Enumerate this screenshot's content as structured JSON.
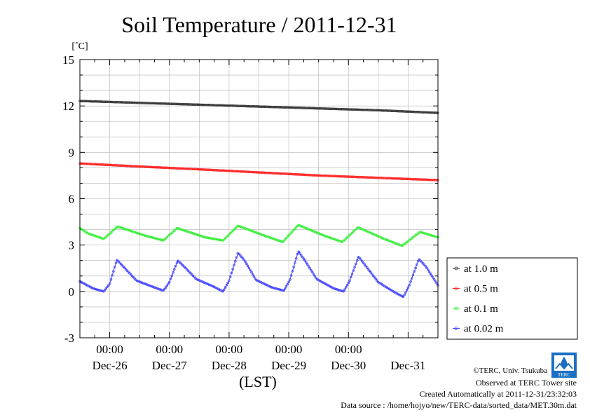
{
  "chart_data": {
    "type": "line",
    "title": "Soil Temperature / 2011-12-31",
    "yunit": "[˚C]",
    "xlabel": "(LST)",
    "ylim": [
      -3,
      15
    ],
    "yticks": [
      "15",
      "12",
      "9",
      "6",
      "3",
      "0",
      "-3"
    ],
    "x_tick_time": "00:00",
    "x_tick_dates": [
      "Dec-26",
      "Dec-27",
      "Dec-28",
      "Dec-29",
      "Dec-30",
      "Dec-31"
    ],
    "x_range_days": [
      0,
      6
    ],
    "grid": true,
    "legend_position": "right",
    "series": [
      {
        "name": "at 1.0 m",
        "color": "#333333",
        "points": [
          [
            0,
            12.32
          ],
          [
            1,
            12.2
          ],
          [
            2,
            12.08
          ],
          [
            3,
            11.96
          ],
          [
            4,
            11.84
          ],
          [
            5,
            11.72
          ],
          [
            6,
            11.55
          ]
        ]
      },
      {
        "name": "at 0.5 m",
        "color": "#ff2020",
        "points": [
          [
            0,
            8.28
          ],
          [
            1,
            8.08
          ],
          [
            2,
            7.9
          ],
          [
            3,
            7.7
          ],
          [
            4,
            7.5
          ],
          [
            5,
            7.35
          ],
          [
            6,
            7.2
          ]
        ]
      },
      {
        "name": "at 0.1 m",
        "color": "#33ee33",
        "points": [
          [
            0,
            4.1
          ],
          [
            0.14,
            3.75
          ],
          [
            0.4,
            3.4
          ],
          [
            0.63,
            4.2
          ],
          [
            1.1,
            3.6
          ],
          [
            1.4,
            3.3
          ],
          [
            1.63,
            4.1
          ],
          [
            2.1,
            3.5
          ],
          [
            2.4,
            3.3
          ],
          [
            2.65,
            4.25
          ],
          [
            3.1,
            3.6
          ],
          [
            3.4,
            3.2
          ],
          [
            3.66,
            4.3
          ],
          [
            4.1,
            3.6
          ],
          [
            4.4,
            3.2
          ],
          [
            4.66,
            4.15
          ],
          [
            5.1,
            3.4
          ],
          [
            5.4,
            2.95
          ],
          [
            5.7,
            3.85
          ],
          [
            6,
            3.5
          ]
        ]
      },
      {
        "name": "at 0.02 m",
        "color": "#4040ff",
        "points": [
          [
            0,
            0.65
          ],
          [
            0.22,
            0.2
          ],
          [
            0.4,
            0.0
          ],
          [
            0.5,
            0.5
          ],
          [
            0.62,
            2.05
          ],
          [
            0.73,
            1.6
          ],
          [
            0.95,
            0.7
          ],
          [
            1.22,
            0.3
          ],
          [
            1.4,
            0.05
          ],
          [
            1.5,
            0.6
          ],
          [
            1.64,
            2.0
          ],
          [
            1.75,
            1.6
          ],
          [
            1.95,
            0.8
          ],
          [
            2.22,
            0.35
          ],
          [
            2.4,
            0.0
          ],
          [
            2.5,
            0.7
          ],
          [
            2.65,
            2.5
          ],
          [
            2.76,
            2.0
          ],
          [
            2.95,
            0.75
          ],
          [
            3.22,
            0.25
          ],
          [
            3.42,
            0.05
          ],
          [
            3.52,
            0.75
          ],
          [
            3.66,
            2.6
          ],
          [
            3.77,
            2.0
          ],
          [
            3.97,
            0.8
          ],
          [
            4.25,
            0.2
          ],
          [
            4.42,
            0.0
          ],
          [
            4.52,
            0.7
          ],
          [
            4.67,
            2.25
          ],
          [
            4.8,
            1.6
          ],
          [
            5.0,
            0.6
          ],
          [
            5.25,
            0.0
          ],
          [
            5.42,
            -0.35
          ],
          [
            5.52,
            0.4
          ],
          [
            5.68,
            2.1
          ],
          [
            5.8,
            1.6
          ],
          [
            6,
            0.4
          ]
        ]
      }
    ]
  },
  "footer": {
    "copyright": "©TERC, Univ. Tsukuba",
    "observed": "Observed at TERC Tower site",
    "created": "Created Automatically at 2011-12-31/23:32:03",
    "source": "Data source : /home/hojyo/new/TERC-data/sorted_data/MET.30m.dat",
    "logo_text": "TERC"
  }
}
